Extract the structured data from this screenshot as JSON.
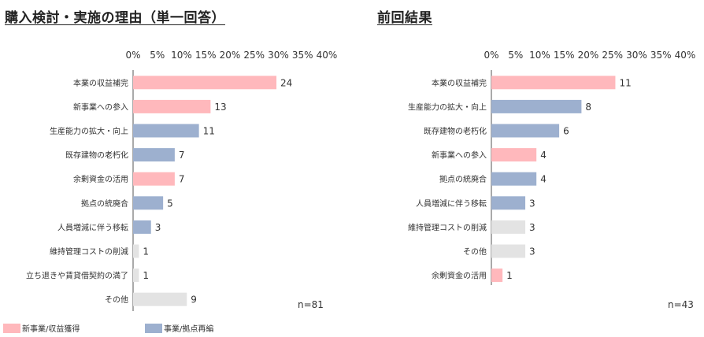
{
  "colors": {
    "pink": "#ffb8bc",
    "blue": "#9db0cf",
    "gray": "#e3e3e3",
    "axis": "#555555"
  },
  "legend": {
    "pink_label": "新事業/収益獲得",
    "blue_label": "事業/拠点再編"
  },
  "chart_data": [
    {
      "type": "bar",
      "orientation": "horizontal",
      "title": "購入検討・実施の理由（単一回答）",
      "n_label": "n=81",
      "x_ticks": [
        "0%",
        "5%",
        "10%",
        "15%",
        "20%",
        "25%",
        "30%",
        "35%",
        "40%"
      ],
      "xlim": [
        0,
        40
      ],
      "categories": [
        "本業の収益補完",
        "新事業への参入",
        "生産能力の拡大・向上",
        "既存建物の老朽化",
        "余剰資金の活用",
        "拠点の統廃合",
        "人員増減に伴う移転",
        "維持管理コストの削減",
        "立ち退きや賃貸借契約の満了",
        "その他"
      ],
      "values": [
        24,
        13,
        11,
        7,
        7,
        5,
        3,
        1,
        1,
        9
      ],
      "percents": [
        29.6,
        16.0,
        13.6,
        8.6,
        8.6,
        6.2,
        3.7,
        1.2,
        1.2,
        11.1
      ],
      "groups": [
        "pink",
        "pink",
        "blue",
        "blue",
        "pink",
        "blue",
        "blue",
        "gray",
        "gray",
        "gray"
      ]
    },
    {
      "type": "bar",
      "orientation": "horizontal",
      "title": "前回結果",
      "n_label": "n=43",
      "x_ticks": [
        "0%",
        "5%",
        "10%",
        "15%",
        "20%",
        "25%",
        "30%",
        "35%",
        "40%"
      ],
      "xlim": [
        0,
        40
      ],
      "categories": [
        "本業の収益補完",
        "生産能力の拡大・向上",
        "既存建物の老朽化",
        "新事業への参入",
        "拠点の統廃合",
        "人員増減に伴う移転",
        "維持管理コストの削減",
        "その他",
        "余剰資金の活用"
      ],
      "values": [
        11,
        8,
        6,
        4,
        4,
        3,
        3,
        3,
        1
      ],
      "percents": [
        25.6,
        18.6,
        14.0,
        9.3,
        9.3,
        7.0,
        7.0,
        7.0,
        2.3
      ],
      "groups": [
        "pink",
        "blue",
        "blue",
        "pink",
        "blue",
        "blue",
        "gray",
        "gray",
        "pink"
      ]
    }
  ]
}
